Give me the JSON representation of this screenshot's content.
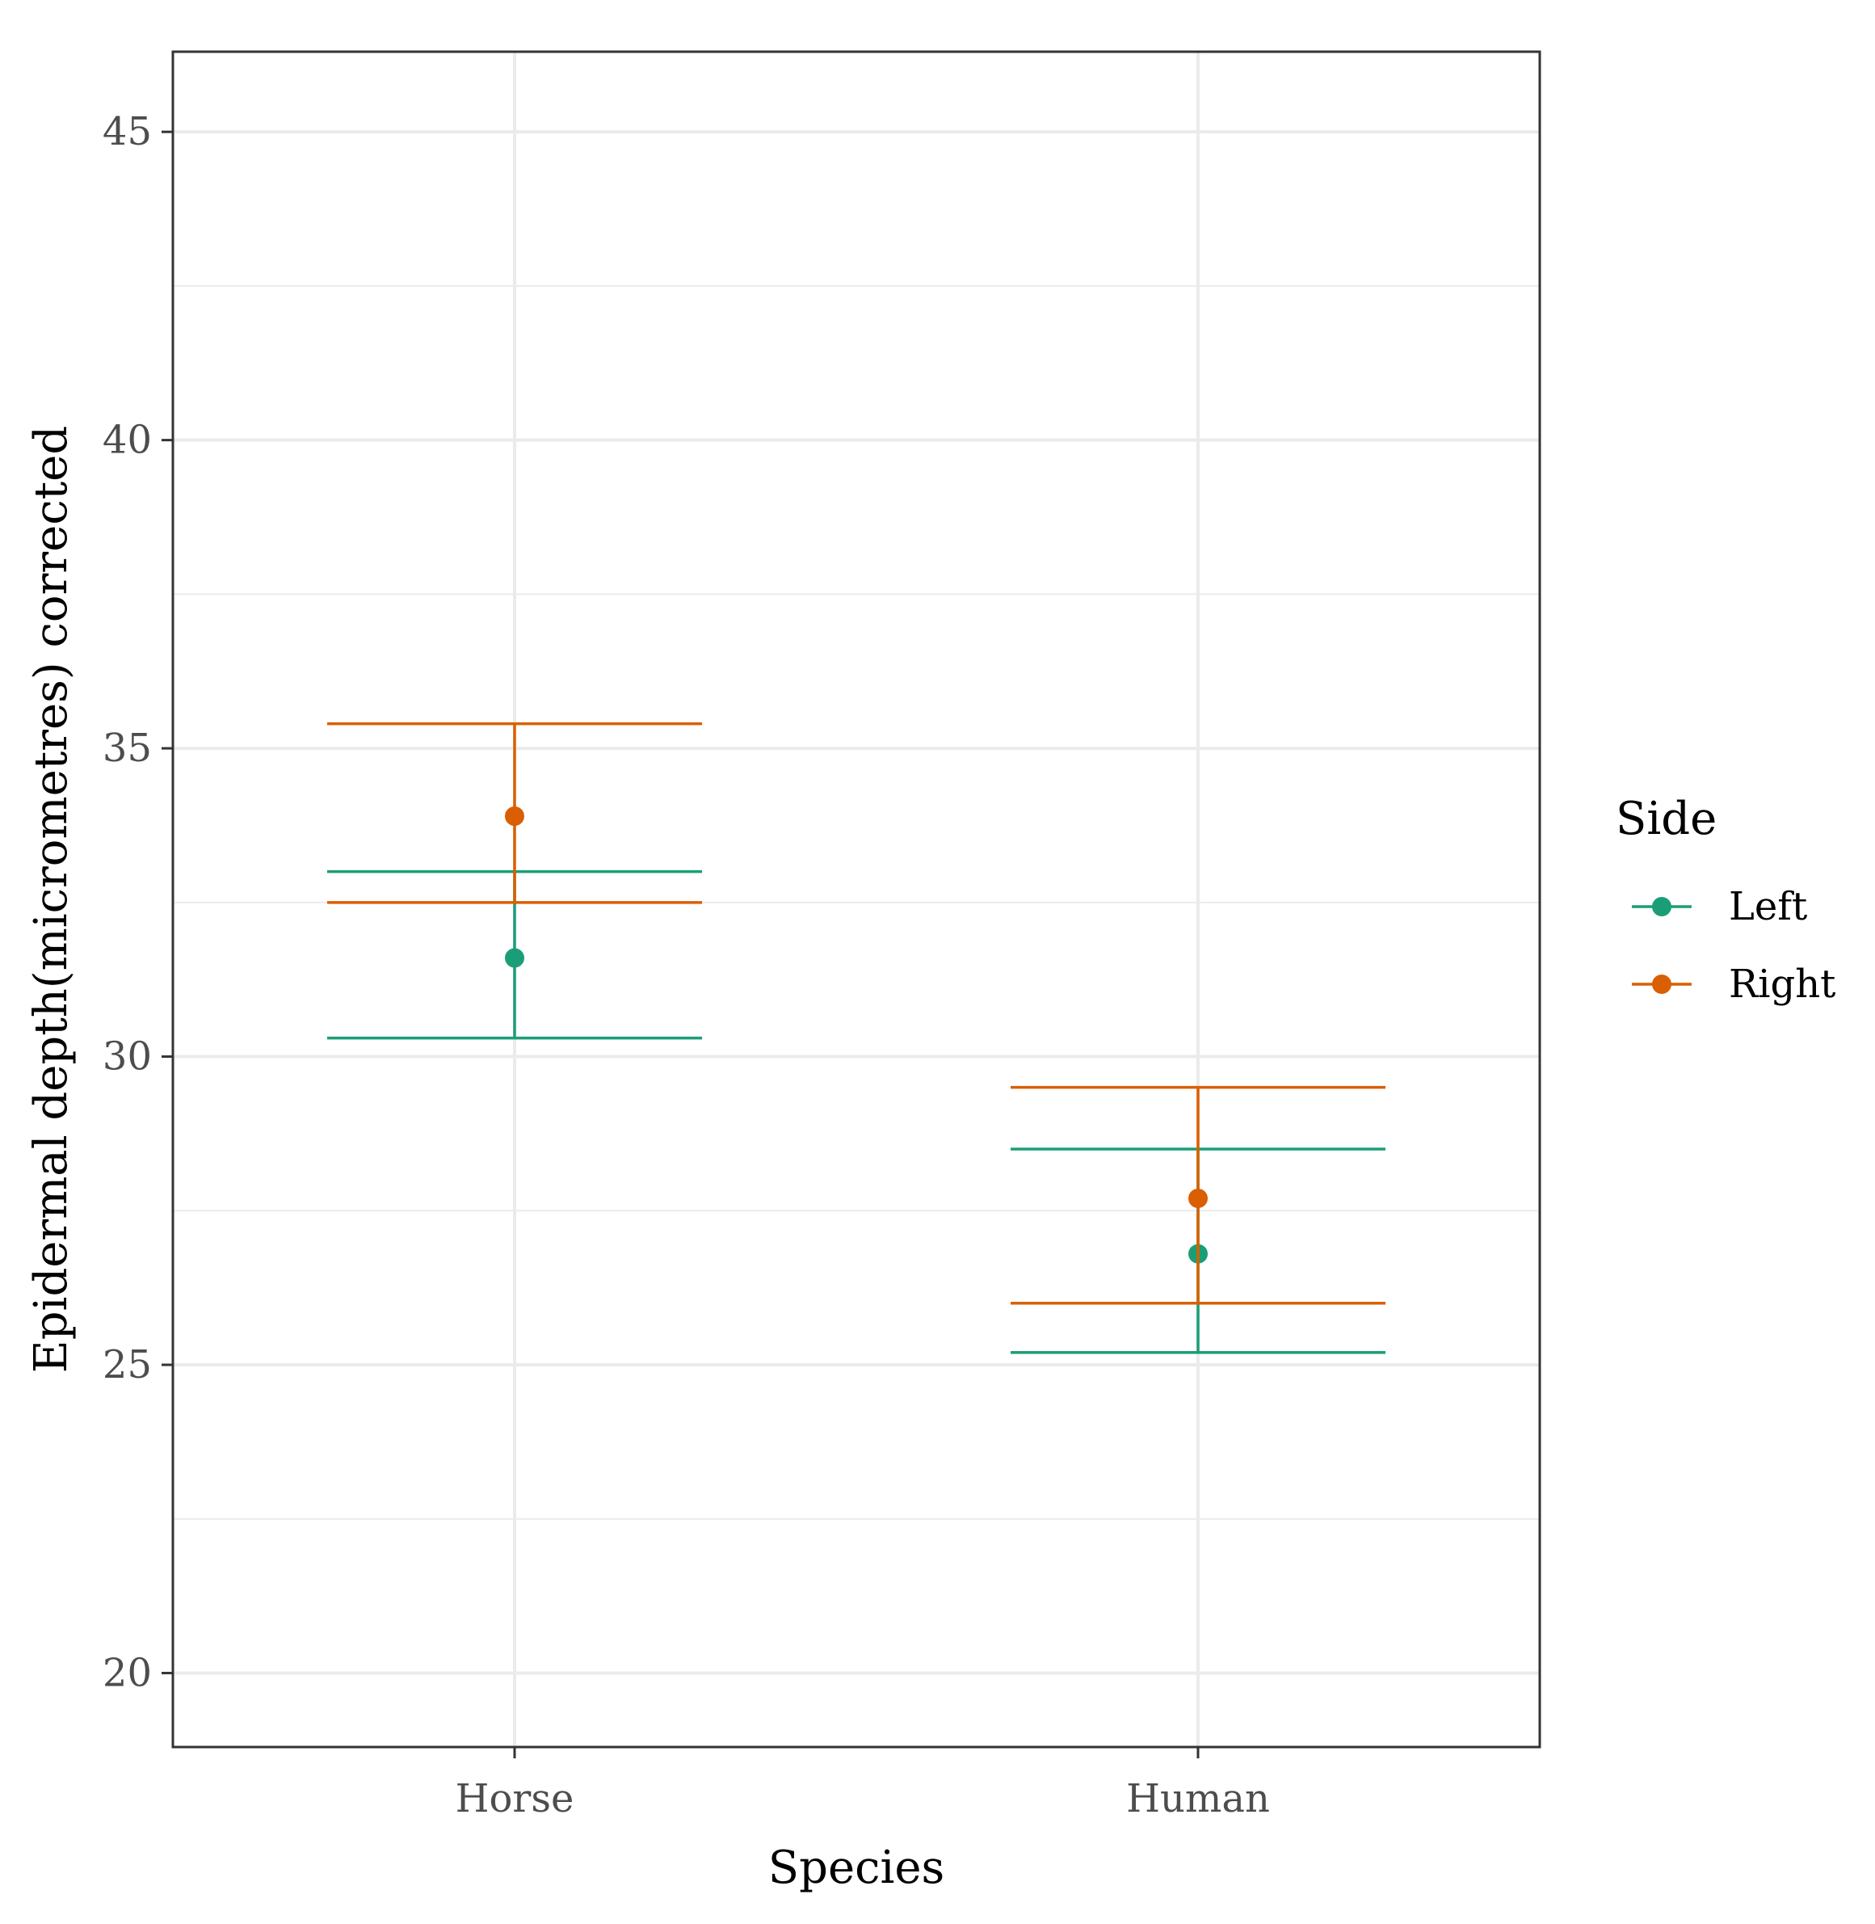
{
  "chart_data": {
    "type": "scatter",
    "subtype": "point-with-error-bars",
    "title": "",
    "xlabel": "Species",
    "ylabel": "Epidermal depth(micrometres) corrected",
    "categories": [
      "Horse",
      "Human"
    ],
    "ylim": [
      18.8,
      46.3
    ],
    "yticks": [
      20,
      25,
      30,
      35,
      40,
      45
    ],
    "ytick_labels": [
      "20",
      "25",
      "30",
      "35",
      "40",
      "45"
    ],
    "grid": true,
    "legend": {
      "title": "Side",
      "placement": "right"
    },
    "series": [
      {
        "name": "Left",
        "color": "#1b9e77",
        "values": [
          31.6,
          26.8
        ],
        "lower": [
          30.3,
          25.2
        ],
        "upper": [
          33.0,
          28.5
        ]
      },
      {
        "name": "Right",
        "color": "#d95f02",
        "values": [
          33.9,
          27.7
        ],
        "lower": [
          32.5,
          26.0
        ],
        "upper": [
          35.4,
          29.5
        ]
      }
    ]
  }
}
